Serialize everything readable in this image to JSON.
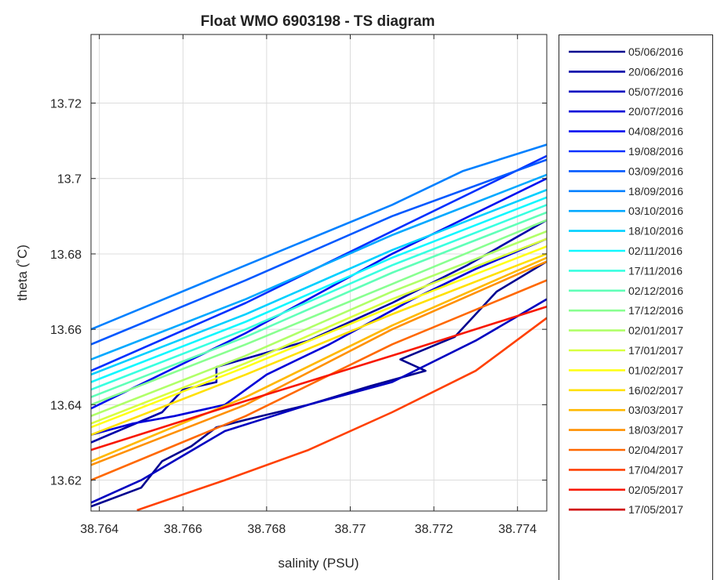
{
  "chart_data": {
    "type": "line",
    "title": "Float WMO 6903198 - TS diagram",
    "xlabel": "salinity (PSU)",
    "ylabel": "theta (˚C)",
    "xlim": [
      38.7638,
      38.7747
    ],
    "ylim": [
      13.6118,
      13.7382
    ],
    "xticks": [
      {
        "value": 38.764,
        "label": "38.764"
      },
      {
        "value": 38.766,
        "label": "38.766"
      },
      {
        "value": 38.768,
        "label": "38.768"
      },
      {
        "value": 38.77,
        "label": "38.77"
      },
      {
        "value": 38.772,
        "label": "38.772"
      },
      {
        "value": 38.774,
        "label": "38.774"
      }
    ],
    "yticks": [
      {
        "value": 13.62,
        "label": "13.62"
      },
      {
        "value": 13.64,
        "label": "13.64"
      },
      {
        "value": 13.66,
        "label": "13.66"
      },
      {
        "value": 13.68,
        "label": "13.68"
      },
      {
        "value": 13.7,
        "label": "13.7"
      },
      {
        "value": 13.72,
        "label": "13.72"
      }
    ],
    "grid": true,
    "legend_position": "outside-right",
    "series": [
      {
        "name": "05/06/2016",
        "color": "#00008f",
        "x": [
          38.7638,
          38.765,
          38.7655,
          38.7662,
          38.7668,
          38.7675,
          38.769,
          38.7705,
          38.7718,
          38.7712,
          38.7725,
          38.7735,
          38.7747
        ],
        "y": [
          13.613,
          13.618,
          13.625,
          13.629,
          13.634,
          13.636,
          13.64,
          13.645,
          13.649,
          13.652,
          13.658,
          13.67,
          13.678
        ]
      },
      {
        "name": "20/06/2016",
        "color": "#0000a8",
        "x": [
          38.7638,
          38.7655,
          38.766,
          38.7668,
          38.7668,
          38.769,
          38.771,
          38.7728,
          38.7747
        ],
        "y": [
          13.63,
          13.638,
          13.644,
          13.646,
          13.65,
          13.657,
          13.667,
          13.677,
          13.689
        ]
      },
      {
        "name": "05/07/2016",
        "color": "#0000c0",
        "x": [
          38.7638,
          38.765,
          38.767,
          38.769,
          38.771,
          38.773,
          38.7747
        ],
        "y": [
          13.614,
          13.62,
          13.633,
          13.64,
          13.646,
          13.657,
          13.668
        ]
      },
      {
        "name": "20/07/2016",
        "color": "#0000d8",
        "x": [
          38.7638,
          38.7648,
          38.7658,
          38.767,
          38.768,
          38.7695,
          38.7715,
          38.773,
          38.7747
        ],
        "y": [
          13.632,
          13.635,
          13.637,
          13.64,
          13.648,
          13.656,
          13.668,
          13.676,
          13.684
        ]
      },
      {
        "name": "04/08/2016",
        "color": "#0010f0",
        "x": [
          38.7638,
          38.7675,
          38.771,
          38.7747
        ],
        "y": [
          13.639,
          13.659,
          13.68,
          13.7
        ]
      },
      {
        "name": "19/08/2016",
        "color": "#0030ff",
        "x": [
          38.7638,
          38.7675,
          38.771,
          38.7747
        ],
        "y": [
          13.649,
          13.667,
          13.686,
          13.706
        ]
      },
      {
        "name": "03/09/2016",
        "color": "#0058ff",
        "x": [
          38.7638,
          38.7675,
          38.771,
          38.7747
        ],
        "y": [
          13.656,
          13.673,
          13.69,
          13.705
        ]
      },
      {
        "name": "18/09/2016",
        "color": "#0080ff",
        "x": [
          38.7638,
          38.7675,
          38.771,
          38.7727,
          38.7747
        ],
        "y": [
          13.66,
          13.677,
          13.693,
          13.702,
          13.709
        ]
      },
      {
        "name": "03/10/2016",
        "color": "#00a8ff",
        "x": [
          38.7638,
          38.7675,
          38.771,
          38.7747
        ],
        "y": [
          13.652,
          13.668,
          13.685,
          13.701
        ]
      },
      {
        "name": "18/10/2016",
        "color": "#00d0ff",
        "x": [
          38.7638,
          38.7675,
          38.771,
          38.7747
        ],
        "y": [
          13.648,
          13.664,
          13.681,
          13.697
        ]
      },
      {
        "name": "02/11/2016",
        "color": "#10f8ff",
        "x": [
          38.7638,
          38.7675,
          38.771,
          38.7747
        ],
        "y": [
          13.646,
          13.662,
          13.679,
          13.695
        ]
      },
      {
        "name": "17/11/2016",
        "color": "#38ffe0",
        "x": [
          38.7638,
          38.7675,
          38.771,
          38.7747
        ],
        "y": [
          13.644,
          13.66,
          13.677,
          13.693
        ]
      },
      {
        "name": "02/12/2016",
        "color": "#60ffb8",
        "x": [
          38.7638,
          38.7675,
          38.771,
          38.7747
        ],
        "y": [
          13.642,
          13.658,
          13.675,
          13.691
        ]
      },
      {
        "name": "17/12/2016",
        "color": "#88ff90",
        "x": [
          38.7638,
          38.7675,
          38.771,
          38.7747
        ],
        "y": [
          13.64,
          13.656,
          13.672,
          13.689
        ]
      },
      {
        "name": "02/01/2017",
        "color": "#b0ff68",
        "x": [
          38.7638,
          38.7675,
          38.771,
          38.7747
        ],
        "y": [
          13.637,
          13.653,
          13.67,
          13.686
        ]
      },
      {
        "name": "17/01/2017",
        "color": "#d8ff40",
        "x": [
          38.7638,
          38.7675,
          38.771,
          38.7747
        ],
        "y": [
          13.635,
          13.651,
          13.668,
          13.684
        ]
      },
      {
        "name": "01/02/2017",
        "color": "#ffff18",
        "x": [
          38.7638,
          38.7675,
          38.771,
          38.7747
        ],
        "y": [
          13.634,
          13.65,
          13.666,
          13.682
        ]
      },
      {
        "name": "16/02/2017",
        "color": "#ffe000",
        "x": [
          38.7638,
          38.7675,
          38.771,
          38.7747
        ],
        "y": [
          13.632,
          13.648,
          13.664,
          13.68
        ]
      },
      {
        "name": "03/03/2017",
        "color": "#ffb800",
        "x": [
          38.7638,
          38.7675,
          38.771,
          38.7747
        ],
        "y": [
          13.625,
          13.642,
          13.661,
          13.679
        ]
      },
      {
        "name": "18/03/2017",
        "color": "#ff9000",
        "x": [
          38.7638,
          38.7675,
          38.771,
          38.7747
        ],
        "y": [
          13.624,
          13.64,
          13.66,
          13.678
        ]
      },
      {
        "name": "02/04/2017",
        "color": "#ff6800",
        "x": [
          38.7638,
          38.7675,
          38.771,
          38.7747
        ],
        "y": [
          13.62,
          13.637,
          13.656,
          13.673
        ]
      },
      {
        "name": "17/04/2017",
        "color": "#ff4000",
        "x": [
          38.7649,
          38.767,
          38.769,
          38.771,
          38.773,
          38.7747
        ],
        "y": [
          13.612,
          13.62,
          13.628,
          13.638,
          13.649,
          13.663
        ]
      },
      {
        "name": "02/05/2017",
        "color": "#f81800",
        "x": [
          38.7638,
          38.7675,
          38.771,
          38.7747
        ],
        "y": [
          13.628,
          13.641,
          13.653,
          13.666
        ]
      },
      {
        "name": "17/05/2017",
        "color": "#d00000",
        "x": [],
        "y": []
      }
    ]
  }
}
